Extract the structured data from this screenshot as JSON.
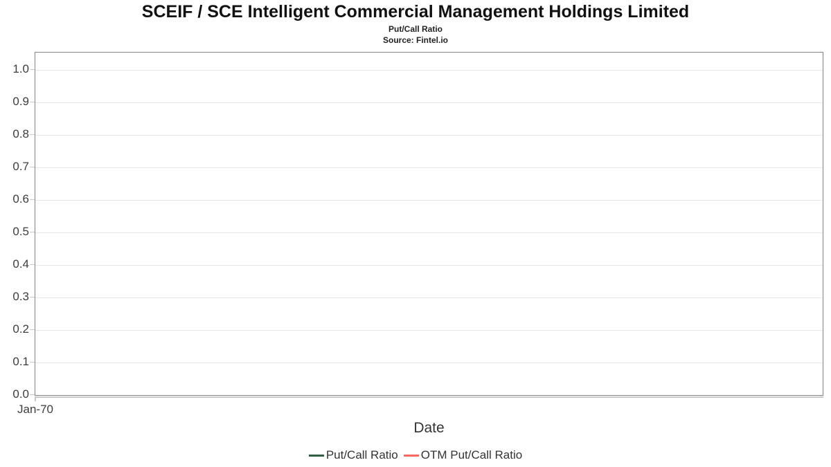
{
  "chart": {
    "title": "SCEIF / SCE Intelligent Commercial Management Holdings Limited",
    "subtitle": "Put/Call Ratio",
    "source": "Source: Fintel.io",
    "xlabel": "Date",
    "x_first_tick": "Jan-70",
    "y_ticks": [
      {
        "value": 1.0,
        "label": "1.0"
      },
      {
        "value": 0.9,
        "label": "0.9"
      },
      {
        "value": 0.8,
        "label": "0.8"
      },
      {
        "value": 0.7,
        "label": "0.7"
      },
      {
        "value": 0.6,
        "label": "0.6"
      },
      {
        "value": 0.5,
        "label": "0.5"
      },
      {
        "value": 0.4,
        "label": "0.4"
      },
      {
        "value": 0.3,
        "label": "0.3"
      },
      {
        "value": 0.2,
        "label": "0.2"
      },
      {
        "value": 0.1,
        "label": "0.1"
      },
      {
        "value": 0.0,
        "label": "0.0"
      }
    ],
    "legend": [
      {
        "label": "Put/Call Ratio",
        "color": "#2e5f43"
      },
      {
        "label": "OTM Put/Call Ratio",
        "color": "#fc6a5f"
      }
    ],
    "colors": {
      "plot_border": "#828282",
      "gridline": "#e6e6e6",
      "tick_mark": "#c9c9c9",
      "tick_text": "#3d3d3d"
    }
  },
  "chart_data": {
    "type": "line",
    "title": "SCEIF / SCE Intelligent Commercial Management Holdings Limited",
    "subtitle": "Put/Call Ratio",
    "source": "Source: Fintel.io",
    "xlabel": "Date",
    "ylabel": "",
    "x": [
      "Jan-70"
    ],
    "series": [
      {
        "name": "Put/Call Ratio",
        "color": "#2e5f43",
        "values": []
      },
      {
        "name": "OTM Put/Call Ratio",
        "color": "#fc6a5f",
        "values": []
      }
    ],
    "ylim": [
      0.0,
      1.05
    ],
    "y_tick_step": 0.1,
    "grid": true,
    "legend_position": "bottom",
    "note_empty": "no data points plotted"
  }
}
